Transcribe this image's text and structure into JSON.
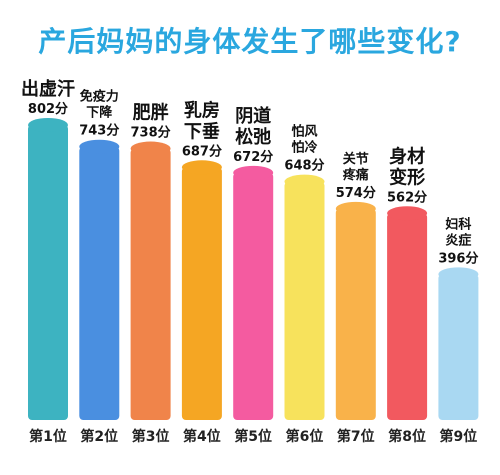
{
  "title": "产后妈妈的身体发生了哪些变化?",
  "chart_data": {
    "type": "bar",
    "title": "产后妈妈的身体发生了哪些变化?",
    "unit": "分",
    "categories": [
      "出虚汗",
      "免疫力下降",
      "肥胖",
      "乳房下垂",
      "阴道松弛",
      "怕风怕冷",
      "关节疼痛",
      "身材变形",
      "妇科炎症"
    ],
    "category_lines": [
      [
        "出虚汗"
      ],
      [
        "免疫力",
        "下降"
      ],
      [
        "肥胖"
      ],
      [
        "乳房",
        "下垂"
      ],
      [
        "阴道",
        "松弛"
      ],
      [
        "怕风",
        "怕冷"
      ],
      [
        "关节",
        "疼痛"
      ],
      [
        "身材",
        "变形"
      ],
      [
        "妇科",
        "炎症"
      ]
    ],
    "value_labels": [
      "802分",
      "743分",
      "738分",
      "687分",
      "672分",
      "648分",
      "574分",
      "562分",
      "396分"
    ],
    "values": [
      802,
      743,
      738,
      687,
      672,
      648,
      574,
      562,
      396
    ],
    "ranks": [
      "第1位",
      "第2位",
      "第3位",
      "第4位",
      "第5位",
      "第6位",
      "第7位",
      "第8位",
      "第9位"
    ],
    "colors": [
      "#3db3c1",
      "#4a8fe0",
      "#f0844a",
      "#f5a623",
      "#f45ba0",
      "#f7e25c",
      "#f9b24a",
      "#f2595f",
      "#a9d8f2"
    ],
    "ylim": [
      0,
      900
    ]
  }
}
